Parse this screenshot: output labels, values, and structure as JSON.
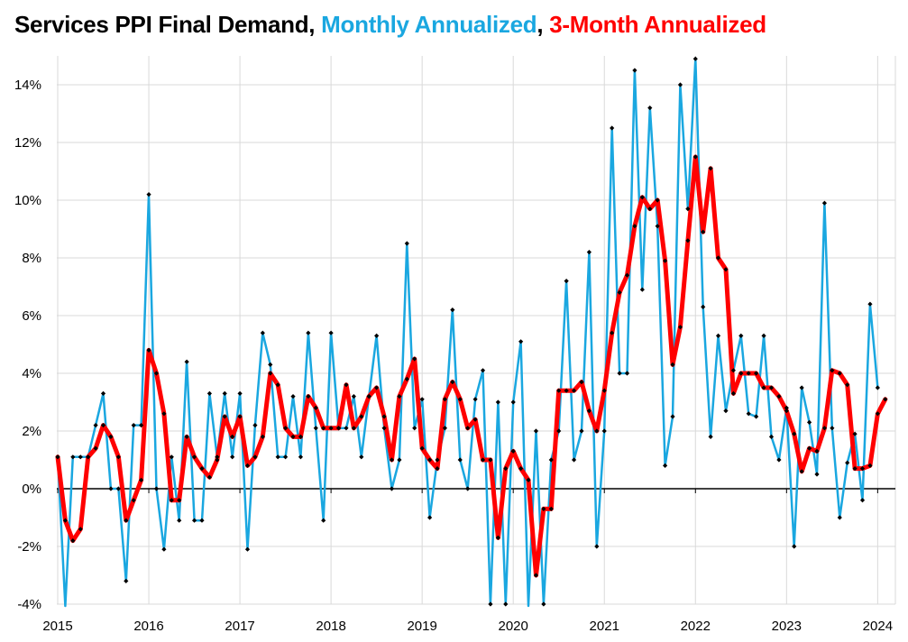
{
  "title": {
    "part1": "Services PPI Final Demand, ",
    "part2": "Monthly Annualized",
    "part3": ", ",
    "part4": "3-Month Annualized",
    "color_main": "#000000",
    "color_monthly": "#1aa7e0",
    "color_3m": "#ff0000"
  },
  "chart_data": {
    "type": "line",
    "title": "Services PPI Final Demand, Monthly Annualized, 3-Month Annualized",
    "xlabel": "",
    "ylabel": "",
    "ylim": [
      -4,
      15
    ],
    "yticks": [
      -4,
      -2,
      0,
      2,
      4,
      6,
      8,
      10,
      12,
      14
    ],
    "ytick_labels": [
      "-4%",
      "-2%",
      "0%",
      "2%",
      "4%",
      "6%",
      "8%",
      "10%",
      "12%",
      "14%"
    ],
    "xticks": [
      "2015",
      "2016",
      "2017",
      "2018",
      "2019",
      "2020",
      "2021",
      "2022",
      "2023",
      "2024"
    ],
    "x_start": "2015-01",
    "grid": true,
    "series": [
      {
        "name": "Monthly Annualized",
        "color": "#1aa7e0",
        "values": [
          1.1,
          -4.2,
          1.1,
          1.1,
          1.1,
          2.2,
          3.3,
          0.0,
          0.0,
          -3.2,
          2.2,
          2.2,
          10.2,
          0.0,
          -2.1,
          1.1,
          -1.1,
          4.4,
          -1.1,
          -1.1,
          3.3,
          1.1,
          3.3,
          1.1,
          3.3,
          -2.1,
          2.2,
          5.4,
          4.3,
          1.1,
          1.1,
          3.2,
          1.1,
          5.4,
          2.1,
          -1.1,
          5.4,
          2.1,
          2.1,
          3.2,
          1.1,
          3.2,
          5.3,
          2.1,
          0.0,
          1.0,
          8.5,
          2.1,
          3.1,
          -1.0,
          1.0,
          2.1,
          6.2,
          1.0,
          0.0,
          3.1,
          4.1,
          -4.0,
          3.0,
          -4.0,
          3.0,
          5.1,
          -4.2,
          2.0,
          -4.0,
          1.0,
          2.0,
          7.2,
          1.0,
          2.0,
          8.2,
          -2.0,
          2.0,
          12.5,
          4.0,
          4.0,
          14.5,
          6.9,
          13.2,
          9.1,
          0.8,
          2.5,
          14.0,
          9.7,
          14.9,
          6.3,
          1.8,
          5.3,
          2.7,
          4.1,
          5.3,
          2.6,
          2.5,
          5.3,
          1.8,
          1.0,
          2.8,
          -2.0,
          3.5,
          2.3,
          0.5,
          9.9,
          2.1,
          -1.0,
          0.9,
          1.9,
          -0.4,
          6.4,
          3.5
        ]
      },
      {
        "name": "3-Month Annualized",
        "color": "#ff0000",
        "values": [
          1.1,
          -1.1,
          -1.8,
          -1.4,
          1.1,
          1.4,
          2.2,
          1.8,
          1.1,
          -1.1,
          -0.4,
          0.3,
          4.8,
          4.0,
          2.6,
          -0.4,
          -0.4,
          1.8,
          1.1,
          0.7,
          0.4,
          1.0,
          2.5,
          1.8,
          2.5,
          0.8,
          1.1,
          1.8,
          4.0,
          3.6,
          2.1,
          1.8,
          1.8,
          3.2,
          2.8,
          2.1,
          2.1,
          2.1,
          3.6,
          2.1,
          2.5,
          3.2,
          3.5,
          2.5,
          1.0,
          3.2,
          3.8,
          4.5,
          1.4,
          1.0,
          0.7,
          3.1,
          3.7,
          3.1,
          2.1,
          2.4,
          1.0,
          1.0,
          -1.7,
          0.7,
          1.3,
          0.7,
          0.3,
          -3.0,
          -0.7,
          -0.7,
          3.4,
          3.4,
          3.4,
          3.7,
          2.7,
          2.0,
          3.4,
          5.4,
          6.8,
          7.4,
          9.1,
          10.1,
          9.7,
          10.0,
          7.9,
          4.3,
          5.6,
          8.6,
          11.5,
          8.9,
          11.1,
          8.0,
          7.6,
          3.3,
          4.0,
          4.0,
          4.0,
          3.5,
          3.5,
          3.2,
          2.7,
          1.9,
          0.6,
          1.4,
          1.3,
          2.1,
          4.1,
          4.0,
          3.6,
          0.7,
          0.7,
          0.8,
          2.6,
          3.1
        ]
      }
    ]
  }
}
